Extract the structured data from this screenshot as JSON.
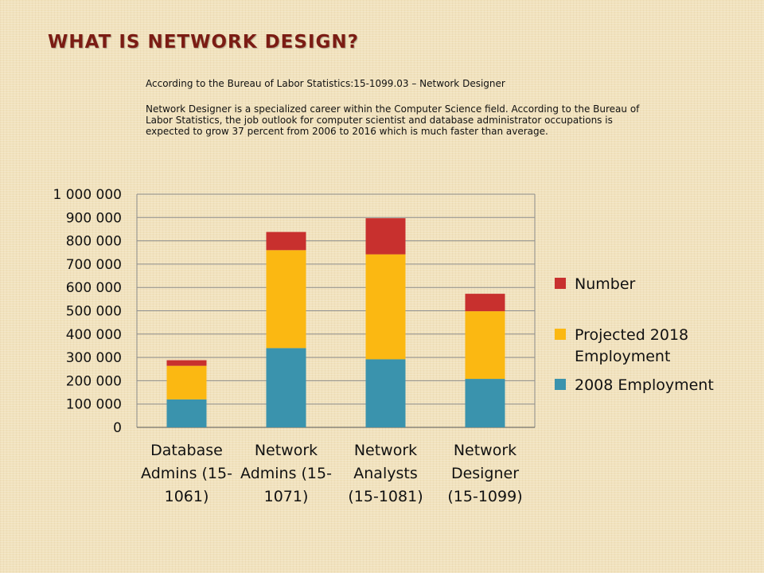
{
  "slide": {
    "title": "WHAT IS NETWORK DESIGN?",
    "intro": "According to the Bureau of Labor Statistics:15-1099.03 – Network Designer",
    "paragraph": "Network Designer is a specialized career within the Computer Science field.  According to the Bureau of Labor Statistics, the job outlook for computer scientist and database administrator occupations is expected to grow 37 percent from 2006 to 2016 which is much faster than average."
  },
  "chart_data": {
    "type": "bar",
    "stacked": true,
    "categories": [
      [
        "Database",
        "Admins (15-",
        "1061)"
      ],
      [
        "Network",
        "Admins (15-",
        "1071)"
      ],
      [
        "Network",
        "Analysts",
        "(15-1081)"
      ],
      [
        "Network",
        "Designer",
        "(15-1099)"
      ]
    ],
    "series": [
      {
        "name": "2008 Employment",
        "color": "#3a93ad",
        "values": [
          120000,
          340000,
          292000,
          208000
        ]
      },
      {
        "name": "Projected 2018 Employment",
        "color": "#fbb812",
        "values": [
          144000,
          420000,
          450000,
          290000
        ]
      },
      {
        "name": "Number",
        "color": "#c8302e",
        "values": [
          24000,
          78000,
          155000,
          75000
        ]
      }
    ],
    "legend_order": [
      2,
      1,
      0
    ],
    "legend_labels": [
      [
        "Number"
      ],
      [
        "Projected 2018",
        "Employment"
      ],
      [
        "2008 Employment"
      ]
    ],
    "ylim": [
      0,
      1000000
    ],
    "yticks": [
      "0",
      "100 000",
      "200 000",
      "300 000",
      "400 000",
      "500 000",
      "600 000",
      "700 000",
      "800 000",
      "900 000",
      "1 000 000"
    ],
    "grid": true,
    "legend_position": "right"
  }
}
